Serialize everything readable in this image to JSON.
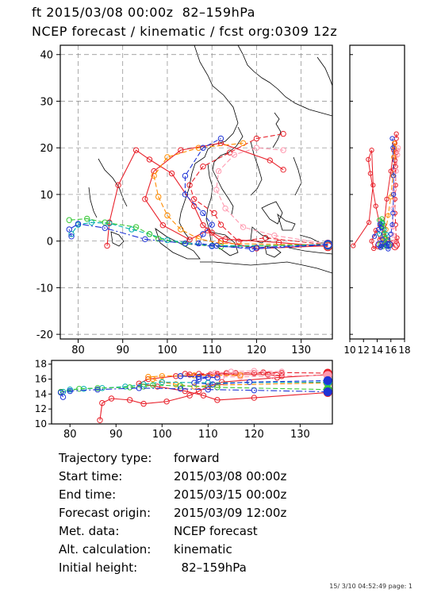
{
  "header": {
    "line1": "ft 2015/03/08 00:00z  82–159hPa",
    "line2": "NCEP forecast / kinematic / fcst org:0309 12z"
  },
  "chart_data": {
    "type": "scatter",
    "map": {
      "xlim": [
        76,
        137
      ],
      "ylim": [
        -21,
        42
      ],
      "x_ticks": [
        "80",
        "90",
        "100",
        "110",
        "120",
        "130"
      ],
      "y_ticks": [
        "40",
        "30",
        "20",
        "10",
        "0",
        "-10",
        "-20"
      ],
      "grid": true
    },
    "height_panel": {
      "ylim": [
        10,
        18.5
      ],
      "y_ticks": [
        "18",
        "16",
        "14",
        "12",
        "10"
      ],
      "x_ticks": [
        "80",
        "90",
        "100",
        "110",
        "120",
        "130"
      ]
    },
    "side_panel": {
      "xlim": [
        10,
        18
      ],
      "x_ticks": [
        "10",
        "12",
        "14",
        "16",
        "18"
      ]
    },
    "series": [
      {
        "color": "#e8202a",
        "dash": "",
        "points": [
          [
            136,
            -1.2
          ],
          [
            125,
            -0.3
          ],
          [
            113,
            0.4
          ],
          [
            110,
            1.8
          ],
          [
            108,
            3.4
          ],
          [
            106,
            7.5
          ],
          [
            101,
            14.5
          ],
          [
            96,
            17.5
          ],
          [
            93,
            19.5
          ],
          [
            89,
            12
          ],
          [
            87,
            4
          ],
          [
            86.5,
            -1
          ]
        ],
        "heights": [
          16.6,
          16.2,
          15.6,
          15,
          14.4,
          13.8,
          13,
          12.7,
          13.2,
          13.4,
          12.8,
          10.5
        ]
      },
      {
        "color": "#e8202a",
        "dash": "",
        "points": [
          [
            136,
            -1
          ],
          [
            120,
            -1.6
          ],
          [
            112,
            0
          ],
          [
            109,
            2.3
          ],
          [
            105,
            0.3
          ],
          [
            99,
            3.4
          ],
          [
            95,
            9
          ],
          [
            97,
            15
          ],
          [
            103,
            19.5
          ],
          [
            112,
            21
          ],
          [
            123,
            17.3
          ],
          [
            126,
            15.3
          ]
        ],
        "heights": [
          14.2,
          13.5,
          13.2,
          13.8,
          14.4,
          15,
          15.4,
          16,
          16.4,
          16.6,
          16.6,
          16.4
        ]
      },
      {
        "color": "#e8202a",
        "dash": "6,3",
        "points": [
          [
            136,
            -0.8
          ],
          [
            122,
            0.7
          ],
          [
            116,
            -0.1
          ],
          [
            112,
            3.5
          ],
          [
            110.5,
            6
          ],
          [
            106,
            9
          ],
          [
            105,
            12
          ],
          [
            108,
            16
          ],
          [
            114,
            19
          ],
          [
            120,
            22
          ],
          [
            126,
            23
          ]
        ],
        "heights": [
          16.8,
          16.9,
          16.8,
          16.7,
          16.6,
          16.6,
          16.7,
          16.7,
          16.8,
          16.8,
          16.8
        ]
      },
      {
        "color": "#ff9ab0",
        "dash": "6,3",
        "points": [
          [
            136,
            -0.6
          ],
          [
            124,
            1.2
          ],
          [
            117,
            3
          ],
          [
            113,
            7
          ],
          [
            111,
            11
          ],
          [
            111.5,
            15
          ],
          [
            115,
            18.5
          ],
          [
            120,
            20
          ],
          [
            126,
            19.5
          ]
        ],
        "heights": [
          16.5,
          16.4,
          16.3,
          16.3,
          16.5,
          16.8,
          17,
          17.1,
          17
        ]
      },
      {
        "color": "#ff8c00",
        "dash": "6,3",
        "points": [
          [
            136,
            -0.9
          ],
          [
            112,
            -0.5
          ],
          [
            107,
            0.5
          ],
          [
            103,
            2.5
          ],
          [
            100,
            5.5
          ],
          [
            98,
            9.5
          ],
          [
            97,
            14
          ],
          [
            100,
            18
          ],
          [
            107,
            20
          ],
          [
            117,
            21
          ]
        ],
        "heights": [
          15.5,
          15.2,
          15,
          15.3,
          15.6,
          16,
          16.3,
          16.4,
          16.5,
          16.5
        ]
      },
      {
        "color": "#00b0b0",
        "dash": "6,3",
        "points": [
          [
            136,
            -0.9
          ],
          [
            110,
            -1
          ],
          [
            100,
            0.2
          ],
          [
            96,
            1.5
          ],
          [
            92,
            2.5
          ],
          [
            87,
            3.8
          ],
          [
            83,
            4
          ],
          [
            80,
            3.5
          ],
          [
            78.5,
            1.5
          ]
        ],
        "heights": [
          15.6,
          15.5,
          15.6,
          15.3,
          15,
          14.8,
          14.7,
          14.6,
          14.3
        ]
      },
      {
        "color": "#38c838",
        "dash": "6,3",
        "points": [
          [
            136,
            -0.7
          ],
          [
            112,
            -1.2
          ],
          [
            104,
            -0.6
          ],
          [
            98,
            0.5
          ],
          [
            96,
            1.5
          ],
          [
            93,
            3
          ],
          [
            86,
            4
          ],
          [
            82,
            4.8
          ],
          [
            78,
            4.5
          ]
        ],
        "heights": [
          14.6,
          14.9,
          15.1,
          15.2,
          15,
          14.9,
          14.8,
          14.7,
          14.3
        ]
      },
      {
        "color": "#1f34d6",
        "dash": "6,3",
        "points": [
          [
            136,
            -0.8
          ],
          [
            119,
            -1.7
          ],
          [
            111,
            -1
          ],
          [
            107,
            -0.5
          ],
          [
            108,
            1.5
          ],
          [
            110,
            3.5
          ],
          [
            108,
            6
          ],
          [
            104,
            10
          ],
          [
            104,
            14
          ],
          [
            108,
            20
          ],
          [
            112,
            22
          ]
        ],
        "heights": [
          15.8,
          15.6,
          15.3,
          15.5,
          16,
          16.2,
          16.3,
          16.4,
          16.4,
          16.3,
          16.2
        ]
      },
      {
        "color": "#1f34d6",
        "dash": "8,3,2,3",
        "points": [
          [
            136,
            -0.7
          ],
          [
            120,
            -1.4
          ],
          [
            110,
            -1.1
          ],
          [
            104,
            -0.5
          ],
          [
            95,
            0.4
          ],
          [
            86,
            2.8
          ],
          [
            80,
            3.7
          ],
          [
            78,
            2.5
          ],
          [
            78.5,
            1
          ]
        ],
        "heights": [
          14.3,
          14.5,
          14.6,
          14.7,
          14.8,
          14.6,
          14.4,
          14.2,
          13.6
        ]
      }
    ]
  },
  "info": {
    "rows": [
      {
        "label": "Trajectory type:",
        "value": "forward"
      },
      {
        "label": "Start time:",
        "value": "2015/03/08 00:00z"
      },
      {
        "label": "End time:",
        "value": "2015/03/15 00:00z"
      },
      {
        "label": "Forecast origin:",
        "value": "2015/03/09 12:00z"
      },
      {
        "label": "Met. data:",
        "value": "NCEP forecast"
      },
      {
        "label": "Alt. calculation:",
        "value": "kinematic"
      },
      {
        "label": "Initial height:",
        "value": "  82–159hPa"
      }
    ]
  },
  "footer": {
    "stamp": "15/ 3/10 04:52:49 page: 1"
  }
}
